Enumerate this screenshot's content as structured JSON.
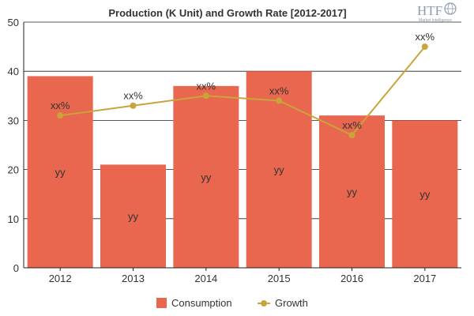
{
  "logo": {
    "text": "HTF",
    "subtext": "Market Intelligence"
  },
  "chart_data": {
    "type": "bar",
    "title": "Production (K Unit) and Growth Rate [2012-2017]",
    "categories": [
      "2012",
      "2013",
      "2014",
      "2015",
      "2016",
      "2017"
    ],
    "ylim": [
      0,
      50
    ],
    "yticks": [
      0,
      10,
      20,
      30,
      40,
      50
    ],
    "grid": true,
    "legend_position": "bottom",
    "series": [
      {
        "name": "Consumption",
        "kind": "bar",
        "color": "#e8674e",
        "values": [
          39,
          21,
          37,
          40,
          31,
          30
        ],
        "labels": [
          "yy",
          "yy",
          "yy",
          "yy",
          "yy",
          "yy"
        ]
      },
      {
        "name": "Growth",
        "kind": "line",
        "color": "#c9a43a",
        "values": [
          31,
          33,
          35,
          34,
          27,
          45
        ],
        "labels": [
          "xx%",
          "xx%",
          "xx%",
          "xx%",
          "xx%",
          "xx%"
        ]
      }
    ]
  }
}
